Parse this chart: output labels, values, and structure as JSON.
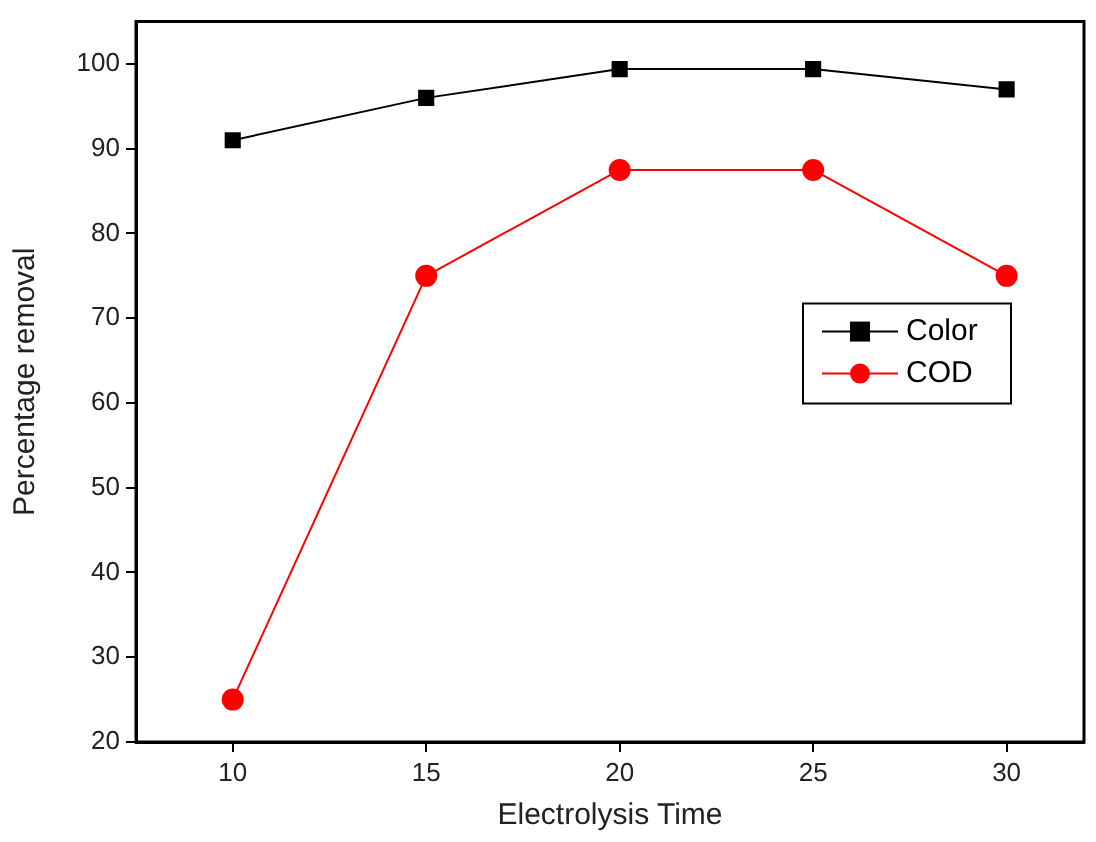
{
  "chart_data": {
    "type": "line",
    "xlabel": "Electrolysis Time",
    "ylabel": "Percentage removal",
    "x": [
      10,
      15,
      20,
      25,
      30
    ],
    "series": [
      {
        "name": "Color",
        "color": "#000000",
        "marker": "square",
        "values": [
          91,
          96,
          99.4,
          99.4,
          97
        ]
      },
      {
        "name": "COD",
        "color": "#ff0000",
        "marker": "circle",
        "values": [
          25,
          75,
          87.5,
          87.5,
          75
        ]
      }
    ],
    "xlim": [
      7.5,
      32
    ],
    "xticks": [
      10,
      15,
      20,
      25,
      30
    ],
    "ylim": [
      20,
      105
    ],
    "yticks": [
      20,
      30,
      40,
      50,
      60,
      70,
      80,
      90,
      100
    ],
    "grid": false,
    "legend": "right",
    "line_style": "solid"
  }
}
